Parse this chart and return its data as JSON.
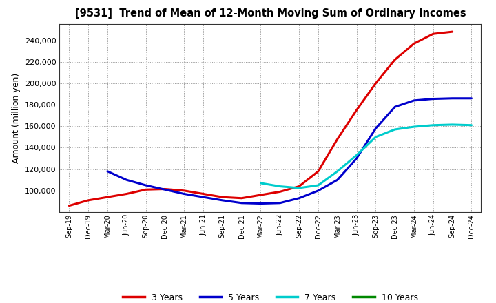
{
  "title": "[9531]  Trend of Mean of 12-Month Moving Sum of Ordinary Incomes",
  "ylabel": "Amount (million yen)",
  "background_color": "#ffffff",
  "plot_bg_color": "#ffffff",
  "grid_color": "#999999",
  "x_labels": [
    "Sep-19",
    "Dec-19",
    "Mar-20",
    "Jun-20",
    "Sep-20",
    "Dec-20",
    "Mar-21",
    "Jun-21",
    "Sep-21",
    "Dec-21",
    "Mar-22",
    "Jun-22",
    "Sep-22",
    "Dec-22",
    "Mar-23",
    "Jun-23",
    "Sep-23",
    "Dec-23",
    "Mar-24",
    "Jun-24",
    "Sep-24",
    "Dec-24"
  ],
  "series": {
    "3 Years": {
      "color": "#dd0000",
      "data_x": [
        0,
        1,
        2,
        3,
        4,
        5,
        6,
        7,
        8,
        9,
        10,
        11,
        12,
        13,
        14,
        15,
        16,
        17,
        18,
        19,
        20
      ],
      "data_y": [
        86000,
        91000,
        94000,
        97000,
        101000,
        101500,
        100000,
        97000,
        94000,
        93000,
        96000,
        99000,
        104000,
        118000,
        148000,
        175000,
        200000,
        222000,
        237000,
        246000,
        248000
      ]
    },
    "5 Years": {
      "color": "#0000cc",
      "data_x": [
        2,
        3,
        4,
        5,
        6,
        7,
        8,
        9,
        10,
        11,
        12,
        13,
        14,
        15,
        16,
        17,
        18,
        19,
        20,
        21
      ],
      "data_y": [
        118000,
        110000,
        105000,
        101000,
        97000,
        94000,
        91000,
        88500,
        88000,
        88500,
        93000,
        100000,
        110000,
        130000,
        158000,
        178000,
        184000,
        185500,
        186000,
        186000
      ]
    },
    "7 Years": {
      "color": "#00cccc",
      "data_x": [
        10,
        11,
        12,
        13,
        14,
        15,
        16,
        17,
        18,
        19,
        20,
        21
      ],
      "data_y": [
        107000,
        104000,
        102500,
        105000,
        118000,
        133000,
        150000,
        157000,
        159500,
        161000,
        161500,
        161000
      ]
    },
    "10 Years": {
      "color": "#008800",
      "data_x": [],
      "data_y": []
    }
  },
  "ylim": [
    80000,
    255000
  ],
  "yticks": [
    100000,
    120000,
    140000,
    160000,
    180000,
    200000,
    220000,
    240000
  ],
  "legend_entries": [
    "3 Years",
    "5 Years",
    "7 Years",
    "10 Years"
  ],
  "legend_colors": [
    "#dd0000",
    "#0000cc",
    "#00cccc",
    "#008800"
  ]
}
